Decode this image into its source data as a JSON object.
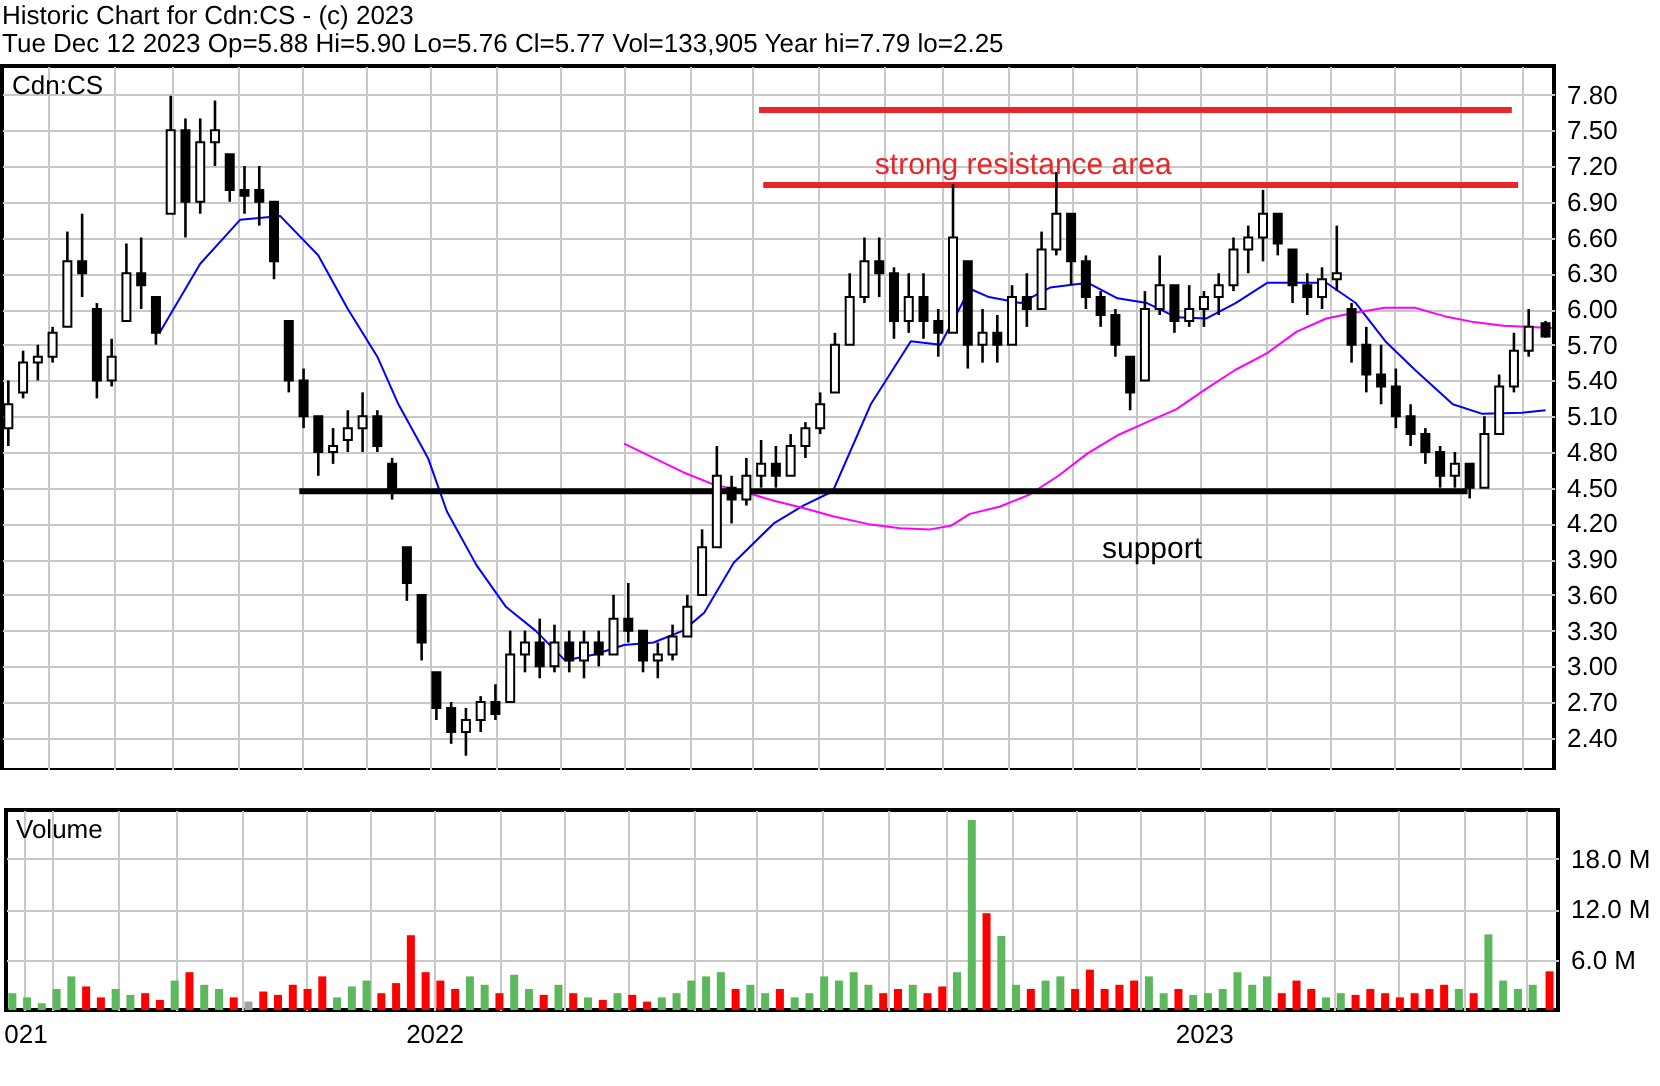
{
  "chart_data": [
    {
      "type": "candlestick",
      "title": "Historic Chart for Cdn:CS - (c) 2023",
      "subtitle": "Tue Dec 12 2023 Op=5.88 Hi=5.90 Lo=5.76 Cl=5.77 Vol=133,905 Year hi=7.79 lo=2.25",
      "x": [
        "2021-12-13",
        "2021-12-20",
        "2021-12-27",
        "2022-01-03",
        "2022-01-10",
        "2022-01-17",
        "2022-01-24",
        "2022-01-31",
        "2022-02-07",
        "2022-02-14",
        "2022-02-21",
        "2022-02-28",
        "2022-03-07",
        "2022-03-14",
        "2022-03-21",
        "2022-03-28",
        "2022-04-04",
        "2022-04-11",
        "2022-04-18",
        "2022-04-25",
        "2022-05-02",
        "2022-05-09",
        "2022-05-16",
        "2022-05-23",
        "2022-05-30",
        "2022-06-06",
        "2022-06-13",
        "2022-06-20",
        "2022-06-27",
        "2022-07-04",
        "2022-07-11",
        "2022-07-18",
        "2022-07-25",
        "2022-08-01",
        "2022-08-08",
        "2022-08-15",
        "2022-08-22",
        "2022-08-29",
        "2022-09-05",
        "2022-09-12",
        "2022-09-19",
        "2022-09-26",
        "2022-10-03",
        "2022-10-10",
        "2022-10-17",
        "2022-10-24",
        "2022-10-31",
        "2022-11-07",
        "2022-11-14",
        "2022-11-21",
        "2022-11-28",
        "2022-12-05",
        "2022-12-12",
        "2022-12-19",
        "2022-12-26",
        "2023-01-02",
        "2023-01-09",
        "2023-01-16",
        "2023-01-23",
        "2023-01-30",
        "2023-02-06",
        "2023-02-13",
        "2023-02-20",
        "2023-02-27",
        "2023-03-06",
        "2023-03-13",
        "2023-03-20",
        "2023-03-27",
        "2023-04-03",
        "2023-04-10",
        "2023-04-17",
        "2023-04-24",
        "2023-05-01",
        "2023-05-08",
        "2023-05-15",
        "2023-05-22",
        "2023-05-29",
        "2023-06-05",
        "2023-06-12",
        "2023-06-19",
        "2023-06-26",
        "2023-07-03",
        "2023-07-10",
        "2023-07-17",
        "2023-07-24",
        "2023-07-31",
        "2023-08-07",
        "2023-08-14",
        "2023-08-21",
        "2023-08-28",
        "2023-09-04",
        "2023-09-11",
        "2023-09-18",
        "2023-09-25",
        "2023-10-02",
        "2023-10-09",
        "2023-10-16",
        "2023-10-23",
        "2023-10-30",
        "2023-11-06",
        "2023-11-13",
        "2023-11-20",
        "2023-11-27",
        "2023-12-04",
        "2023-12-12"
      ],
      "ohlc": [
        [
          5.0,
          5.4,
          4.85,
          5.2
        ],
        [
          5.3,
          5.65,
          5.25,
          5.55
        ],
        [
          5.55,
          5.7,
          5.4,
          5.6
        ],
        [
          5.6,
          5.85,
          5.55,
          5.8
        ],
        [
          5.85,
          6.65,
          5.85,
          6.4
        ],
        [
          6.4,
          6.8,
          6.1,
          6.3
        ],
        [
          6.0,
          6.05,
          5.25,
          5.4
        ],
        [
          5.4,
          5.75,
          5.35,
          5.6
        ],
        [
          5.9,
          6.55,
          5.9,
          6.3
        ],
        [
          6.3,
          6.6,
          6.0,
          6.2
        ],
        [
          6.1,
          6.1,
          5.7,
          5.8
        ],
        [
          6.8,
          7.79,
          6.8,
          7.5
        ],
        [
          7.5,
          7.6,
          6.6,
          6.9
        ],
        [
          6.9,
          7.6,
          6.8,
          7.4
        ],
        [
          7.4,
          7.75,
          7.2,
          7.5
        ],
        [
          7.3,
          7.3,
          6.9,
          7.0
        ],
        [
          7.0,
          7.2,
          6.8,
          6.95
        ],
        [
          7.0,
          7.2,
          6.7,
          6.9
        ],
        [
          6.9,
          6.9,
          6.25,
          6.4
        ],
        [
          5.9,
          5.9,
          5.3,
          5.4
        ],
        [
          5.4,
          5.5,
          5.0,
          5.1
        ],
        [
          5.1,
          5.1,
          4.6,
          4.8
        ],
        [
          4.8,
          5.0,
          4.7,
          4.85
        ],
        [
          4.9,
          5.15,
          4.8,
          5.0
        ],
        [
          5.0,
          5.3,
          4.8,
          5.1
        ],
        [
          5.1,
          5.15,
          4.8,
          4.85
        ],
        [
          4.7,
          4.75,
          4.4,
          4.5
        ],
        [
          4.0,
          4.0,
          3.55,
          3.7
        ],
        [
          3.6,
          3.6,
          3.05,
          3.2
        ],
        [
          2.95,
          2.95,
          2.55,
          2.65
        ],
        [
          2.65,
          2.7,
          2.35,
          2.45
        ],
        [
          2.45,
          2.65,
          2.25,
          2.55
        ],
        [
          2.55,
          2.75,
          2.45,
          2.7
        ],
        [
          2.7,
          2.85,
          2.55,
          2.6
        ],
        [
          2.7,
          3.3,
          2.7,
          3.1
        ],
        [
          3.1,
          3.3,
          2.95,
          3.2
        ],
        [
          3.2,
          3.4,
          2.9,
          3.0
        ],
        [
          3.0,
          3.35,
          2.95,
          3.2
        ],
        [
          3.2,
          3.3,
          2.95,
          3.05
        ],
        [
          3.05,
          3.3,
          2.9,
          3.2
        ],
        [
          3.2,
          3.3,
          3.0,
          3.1
        ],
        [
          3.1,
          3.6,
          3.1,
          3.4
        ],
        [
          3.4,
          3.7,
          3.2,
          3.3
        ],
        [
          3.3,
          3.3,
          2.95,
          3.05
        ],
        [
          3.05,
          3.2,
          2.9,
          3.1
        ],
        [
          3.1,
          3.35,
          3.05,
          3.25
        ],
        [
          3.25,
          3.6,
          3.25,
          3.5
        ],
        [
          3.6,
          4.15,
          3.6,
          4.0
        ],
        [
          4.0,
          4.85,
          4.0,
          4.6
        ],
        [
          4.5,
          4.6,
          4.2,
          4.4
        ],
        [
          4.4,
          4.75,
          4.35,
          4.6
        ],
        [
          4.6,
          4.9,
          4.5,
          4.7
        ],
        [
          4.7,
          4.85,
          4.5,
          4.6
        ],
        [
          4.6,
          4.95,
          4.6,
          4.85
        ],
        [
          4.85,
          5.05,
          4.75,
          5.0
        ],
        [
          5.0,
          5.3,
          4.95,
          5.2
        ],
        [
          5.3,
          5.8,
          5.3,
          5.7
        ],
        [
          5.7,
          6.3,
          5.7,
          6.1
        ],
        [
          6.1,
          6.6,
          6.05,
          6.4
        ],
        [
          6.4,
          6.6,
          6.1,
          6.3
        ],
        [
          6.3,
          6.35,
          5.75,
          5.9
        ],
        [
          5.9,
          6.3,
          5.8,
          6.1
        ],
        [
          6.1,
          6.3,
          5.75,
          5.9
        ],
        [
          5.9,
          6.0,
          5.6,
          5.8
        ],
        [
          5.8,
          7.05,
          5.8,
          6.6
        ],
        [
          6.4,
          6.4,
          5.5,
          5.7
        ],
        [
          5.7,
          6.0,
          5.55,
          5.8
        ],
        [
          5.8,
          5.95,
          5.55,
          5.7
        ],
        [
          5.7,
          6.2,
          5.7,
          6.1
        ],
        [
          6.1,
          6.3,
          5.85,
          6.0
        ],
        [
          6.0,
          6.65,
          6.0,
          6.5
        ],
        [
          6.5,
          7.15,
          6.45,
          6.8
        ],
        [
          6.8,
          6.8,
          6.2,
          6.4
        ],
        [
          6.4,
          6.45,
          6.0,
          6.1
        ],
        [
          6.1,
          6.15,
          5.85,
          5.95
        ],
        [
          5.95,
          6.0,
          5.6,
          5.7
        ],
        [
          5.6,
          5.6,
          5.15,
          5.3
        ],
        [
          5.4,
          6.15,
          5.4,
          6.0
        ],
        [
          6.0,
          6.45,
          5.95,
          6.2
        ],
        [
          6.2,
          6.2,
          5.8,
          5.9
        ],
        [
          5.9,
          6.2,
          5.85,
          6.0
        ],
        [
          6.0,
          6.15,
          5.85,
          6.1
        ],
        [
          6.1,
          6.3,
          5.95,
          6.2
        ],
        [
          6.2,
          6.6,
          6.15,
          6.5
        ],
        [
          6.5,
          6.7,
          6.3,
          6.6
        ],
        [
          6.6,
          7.0,
          6.4,
          6.8
        ],
        [
          6.8,
          6.8,
          6.45,
          6.55
        ],
        [
          6.5,
          6.5,
          6.05,
          6.2
        ],
        [
          6.2,
          6.3,
          5.95,
          6.1
        ],
        [
          6.1,
          6.35,
          6.0,
          6.25
        ],
        [
          6.25,
          6.7,
          6.15,
          6.3
        ],
        [
          6.0,
          6.05,
          5.55,
          5.7
        ],
        [
          5.7,
          5.85,
          5.3,
          5.45
        ],
        [
          5.45,
          5.7,
          5.2,
          5.35
        ],
        [
          5.35,
          5.5,
          5.0,
          5.1
        ],
        [
          5.1,
          5.2,
          4.85,
          4.95
        ],
        [
          4.95,
          5.0,
          4.7,
          4.8
        ],
        [
          4.8,
          4.85,
          4.5,
          4.6
        ],
        [
          4.6,
          4.8,
          4.5,
          4.7
        ],
        [
          4.7,
          4.7,
          4.41,
          4.5
        ],
        [
          4.5,
          5.1,
          4.5,
          4.95
        ],
        [
          4.95,
          5.45,
          4.95,
          5.35
        ],
        [
          5.35,
          5.8,
          5.3,
          5.65
        ],
        [
          5.65,
          6.0,
          5.6,
          5.85
        ],
        [
          5.88,
          5.9,
          5.76,
          5.77
        ]
      ],
      "series": [
        {
          "type": "line",
          "color": "#0000ff",
          "x": [
            "2022-02-23",
            "2022-03-14",
            "2022-04-02",
            "2022-04-21",
            "2022-05-09",
            "2022-05-23",
            "2022-06-06",
            "2022-06-16",
            "2022-06-30",
            "2022-07-09",
            "2022-07-23",
            "2022-08-06",
            "2022-08-20",
            "2022-09-03",
            "2022-09-17",
            "2022-10-01",
            "2022-10-15",
            "2022-10-29",
            "2022-11-08",
            "2022-11-22",
            "2022-12-11",
            "2022-12-25",
            "2023-01-08",
            "2023-01-26",
            "2023-02-14",
            "2023-02-28",
            "2023-03-14",
            "2023-03-23",
            "2023-04-07",
            "2023-04-21",
            "2023-05-09",
            "2023-05-23",
            "2023-06-06",
            "2023-06-20",
            "2023-07-04",
            "2023-07-18",
            "2023-08-02",
            "2023-08-16",
            "2023-08-30",
            "2023-09-13",
            "2023-09-27",
            "2023-10-11",
            "2023-10-29",
            "2023-11-12",
            "2023-12-01",
            "2023-12-12"
          ],
          "values": [
            5.81,
            6.38,
            6.75,
            6.78,
            6.45,
            6.0,
            5.6,
            5.2,
            4.75,
            4.3,
            3.85,
            3.5,
            3.3,
            3.05,
            3.1,
            3.18,
            3.2,
            3.3,
            3.45,
            3.87,
            4.2,
            4.35,
            4.47,
            5.2,
            5.73,
            5.7,
            6.17,
            6.1,
            6.05,
            6.18,
            6.22,
            6.09,
            6.05,
            5.93,
            5.92,
            6.05,
            6.22,
            6.22,
            6.22,
            6.05,
            5.73,
            5.49,
            5.2,
            5.12,
            5.13,
            5.15
          ]
        },
        {
          "type": "line",
          "color": "#ff00ff",
          "x": [
            "2022-10-01",
            "2022-10-15",
            "2022-10-29",
            "2022-11-12",
            "2022-11-26",
            "2022-12-11",
            "2022-12-25",
            "2023-01-08",
            "2023-01-26",
            "2023-02-09",
            "2023-02-23",
            "2023-03-05",
            "2023-03-14",
            "2023-03-28",
            "2023-04-11",
            "2023-04-25",
            "2023-05-09",
            "2023-05-23",
            "2023-06-06",
            "2023-06-20",
            "2023-07-04",
            "2023-07-18",
            "2023-08-02",
            "2023-08-16",
            "2023-08-30",
            "2023-09-13",
            "2023-09-27",
            "2023-10-11",
            "2023-10-25",
            "2023-11-08",
            "2023-11-22",
            "2023-12-15"
          ],
          "values": [
            4.87,
            4.75,
            4.63,
            4.53,
            4.47,
            4.39,
            4.33,
            4.26,
            4.19,
            4.16,
            4.15,
            4.18,
            4.28,
            4.34,
            4.44,
            4.6,
            4.79,
            4.94,
            5.05,
            5.16,
            5.33,
            5.49,
            5.63,
            5.81,
            5.92,
            5.97,
            6.01,
            6.01,
            5.94,
            5.89,
            5.86,
            5.84
          ]
        },
        {
          "type": "line",
          "color": "#e8262a",
          "x": [
            "2022-12-04",
            "2023-11-26"
          ],
          "values": [
            7.67,
            7.67
          ]
        },
        {
          "type": "line",
          "color": "#e8262a",
          "x": [
            "2022-12-06",
            "2023-11-29"
          ],
          "values": [
            7.04,
            7.04
          ]
        },
        {
          "type": "line",
          "color": "#000000",
          "x": [
            "2022-04-30",
            "2023-11-05"
          ],
          "values": [
            4.47,
            4.47
          ]
        }
      ],
      "xlim": [
        "2021-12-10",
        "2023-12-16"
      ],
      "xticks": [
        {
          "value": "2022-01-01",
          "label": null
        },
        {
          "value": "2022-02-01",
          "label": null
        },
        {
          "value": "2022-03-01",
          "label": null
        },
        {
          "value": "2022-04-01",
          "label": null
        },
        {
          "value": "2022-05-01",
          "label": null
        },
        {
          "value": "2022-06-01",
          "label": null
        },
        {
          "value": "2022-07-01",
          "label": null
        },
        {
          "value": "2022-08-01",
          "label": null
        },
        {
          "value": "2022-09-01",
          "label": null
        },
        {
          "value": "2022-10-01",
          "label": null
        },
        {
          "value": "2022-11-01",
          "label": null
        },
        {
          "value": "2022-12-01",
          "label": null
        },
        {
          "value": "2023-01-01",
          "label": null
        },
        {
          "value": "2023-02-01",
          "label": null
        },
        {
          "value": "2023-03-01",
          "label": null
        },
        {
          "value": "2023-04-01",
          "label": null
        },
        {
          "value": "2023-05-01",
          "label": null
        },
        {
          "value": "2023-06-01",
          "label": null
        },
        {
          "value": "2023-07-01",
          "label": null
        },
        {
          "value": "2023-08-01",
          "label": null
        },
        {
          "value": "2023-09-01",
          "label": null
        },
        {
          "value": "2023-10-01",
          "label": null
        },
        {
          "value": "2023-11-01",
          "label": null
        },
        {
          "value": "2023-12-01",
          "label": null
        }
      ],
      "ylim": [
        2.13,
        8.04
      ],
      "yticks": [
        {
          "value": 2.4,
          "label": "2.40"
        },
        {
          "value": 2.7,
          "label": "2.70"
        },
        {
          "value": 3.0,
          "label": "3.00"
        },
        {
          "value": 3.3,
          "label": "3.30"
        },
        {
          "value": 3.6,
          "label": "3.60"
        },
        {
          "value": 3.9,
          "label": "3.90"
        },
        {
          "value": 4.2,
          "label": "4.20"
        },
        {
          "value": 4.5,
          "label": "4.50"
        },
        {
          "value": 4.8,
          "label": "4.80"
        },
        {
          "value": 5.1,
          "label": "5.10"
        },
        {
          "value": 5.4,
          "label": "5.40"
        },
        {
          "value": 5.7,
          "label": "5.70"
        },
        {
          "value": 6.0,
          "label": "6.00"
        },
        {
          "value": 6.3,
          "label": "6.30"
        },
        {
          "value": 6.6,
          "label": "6.60"
        },
        {
          "value": 6.9,
          "label": "6.90"
        },
        {
          "value": 7.2,
          "label": "7.20"
        },
        {
          "value": 7.5,
          "label": "7.50"
        },
        {
          "value": 7.8,
          "label": "7.80"
        }
      ],
      "grid": true,
      "tick_labels": "y",
      "annotations": [
        "Cdn:CS",
        "strong resistance area",
        "support"
      ]
    },
    {
      "type": "bar",
      "annotations": [
        "Volume"
      ],
      "x": [
        "2021-12-13",
        "2021-12-20",
        "2021-12-27",
        "2022-01-03",
        "2022-01-10",
        "2022-01-17",
        "2022-01-24",
        "2022-01-31",
        "2022-02-07",
        "2022-02-14",
        "2022-02-21",
        "2022-02-28",
        "2022-03-07",
        "2022-03-14",
        "2022-03-21",
        "2022-03-28",
        "2022-04-04",
        "2022-04-11",
        "2022-04-18",
        "2022-04-25",
        "2022-05-02",
        "2022-05-09",
        "2022-05-16",
        "2022-05-23",
        "2022-05-30",
        "2022-06-06",
        "2022-06-13",
        "2022-06-20",
        "2022-06-27",
        "2022-07-04",
        "2022-07-11",
        "2022-07-18",
        "2022-07-25",
        "2022-08-01",
        "2022-08-08",
        "2022-08-15",
        "2022-08-22",
        "2022-08-29",
        "2022-09-05",
        "2022-09-12",
        "2022-09-19",
        "2022-09-26",
        "2022-10-03",
        "2022-10-10",
        "2022-10-17",
        "2022-10-24",
        "2022-10-31",
        "2022-11-07",
        "2022-11-14",
        "2022-11-21",
        "2022-11-28",
        "2022-12-05",
        "2022-12-12",
        "2022-12-19",
        "2022-12-26",
        "2023-01-02",
        "2023-01-09",
        "2023-01-16",
        "2023-01-23",
        "2023-01-30",
        "2023-02-06",
        "2023-02-13",
        "2023-02-20",
        "2023-02-27",
        "2023-03-06",
        "2023-03-13",
        "2023-03-20",
        "2023-03-27",
        "2023-04-03",
        "2023-04-10",
        "2023-04-17",
        "2023-04-24",
        "2023-05-01",
        "2023-05-08",
        "2023-05-15",
        "2023-05-22",
        "2023-05-29",
        "2023-06-05",
        "2023-06-12",
        "2023-06-19",
        "2023-06-26",
        "2023-07-03",
        "2023-07-10",
        "2023-07-17",
        "2023-07-24",
        "2023-07-31",
        "2023-08-07",
        "2023-08-14",
        "2023-08-21",
        "2023-08-28",
        "2023-09-04",
        "2023-09-11",
        "2023-09-18",
        "2023-09-25",
        "2023-10-02",
        "2023-10-09",
        "2023-10-16",
        "2023-10-23",
        "2023-10-30",
        "2023-11-06",
        "2023-11-13",
        "2023-11-20",
        "2023-11-27",
        "2023-12-04",
        "2023-12-12"
      ],
      "values": [
        2.0,
        1.5,
        0.8,
        2.5,
        4.0,
        2.8,
        1.5,
        2.5,
        1.8,
        2.0,
        1.2,
        3.5,
        4.5,
        3.0,
        2.5,
        1.5,
        1.0,
        2.2,
        1.8,
        3.0,
        2.5,
        4.0,
        1.5,
        2.8,
        3.5,
        2.0,
        3.2,
        8.9,
        4.5,
        3.5,
        2.5,
        4.0,
        3.0,
        2.0,
        4.2,
        2.5,
        1.8,
        3.0,
        2.0,
        1.5,
        1.2,
        2.0,
        1.8,
        1.0,
        1.5,
        2.0,
        3.5,
        4.0,
        4.5,
        2.5,
        3.0,
        2.0,
        2.5,
        1.5,
        2.0,
        4.0,
        3.5,
        4.5,
        3.0,
        2.0,
        2.5,
        3.0,
        2.0,
        2.8,
        4.5,
        22.6,
        11.5,
        8.8,
        3.0,
        2.5,
        3.5,
        4.0,
        2.5,
        4.8,
        2.5,
        3.0,
        3.5,
        4.0,
        2.0,
        2.5,
        1.8,
        2.0,
        2.5,
        4.5,
        3.0,
        4.0,
        2.0,
        3.5,
        2.5,
        1.5,
        2.0,
        1.8,
        2.5,
        2.0,
        1.5,
        2.0,
        2.5,
        3.0,
        2.5,
        2.0,
        9.0,
        3.5,
        2.5,
        3.0,
        4.6
      ],
      "colors": [
        "#5cb85c",
        "#5cb85c",
        "#5cb85c",
        "#5cb85c",
        "#5cb85c",
        "#ff0000",
        "#ff0000",
        "#5cb85c",
        "#5cb85c",
        "#ff0000",
        "#ff0000",
        "#5cb85c",
        "#ff0000",
        "#5cb85c",
        "#5cb85c",
        "#ff0000",
        "#a0a0a0",
        "#ff0000",
        "#ff0000",
        "#ff0000",
        "#ff0000",
        "#ff0000",
        "#5cb85c",
        "#5cb85c",
        "#5cb85c",
        "#ff0000",
        "#ff0000",
        "#ff0000",
        "#ff0000",
        "#ff0000",
        "#ff0000",
        "#5cb85c",
        "#5cb85c",
        "#ff0000",
        "#5cb85c",
        "#5cb85c",
        "#ff0000",
        "#5cb85c",
        "#ff0000",
        "#5cb85c",
        "#ff0000",
        "#5cb85c",
        "#ff0000",
        "#ff0000",
        "#5cb85c",
        "#5cb85c",
        "#5cb85c",
        "#5cb85c",
        "#5cb85c",
        "#ff0000",
        "#5cb85c",
        "#5cb85c",
        "#ff0000",
        "#5cb85c",
        "#5cb85c",
        "#5cb85c",
        "#5cb85c",
        "#5cb85c",
        "#5cb85c",
        "#ff0000",
        "#ff0000",
        "#5cb85c",
        "#ff0000",
        "#ff0000",
        "#5cb85c",
        "#5cb85c",
        "#ff0000",
        "#5cb85c",
        "#5cb85c",
        "#ff0000",
        "#5cb85c",
        "#5cb85c",
        "#ff0000",
        "#ff0000",
        "#ff0000",
        "#ff0000",
        "#ff0000",
        "#5cb85c",
        "#5cb85c",
        "#ff0000",
        "#5cb85c",
        "#5cb85c",
        "#5cb85c",
        "#5cb85c",
        "#5cb85c",
        "#5cb85c",
        "#ff0000",
        "#ff0000",
        "#ff0000",
        "#5cb85c",
        "#5cb85c",
        "#ff0000",
        "#ff0000",
        "#ff0000",
        "#ff0000",
        "#ff0000",
        "#ff0000",
        "#ff0000",
        "#5cb85c",
        "#ff0000",
        "#5cb85c",
        "#5cb85c",
        "#5cb85c",
        "#5cb85c",
        "#ff0000"
      ],
      "xlim": [
        "2021-12-10",
        "2023-12-16"
      ],
      "xticks": [
        {
          "value": "2021-12-19",
          "label": "021"
        },
        {
          "value": "2022-01-01",
          "label": null
        },
        {
          "value": "2022-02-01",
          "label": null
        },
        {
          "value": "2022-03-01",
          "label": null
        },
        {
          "value": "2022-04-01",
          "label": null
        },
        {
          "value": "2022-05-01",
          "label": null
        },
        {
          "value": "2022-06-01",
          "label": null
        },
        {
          "value": "2022-07-01",
          "label": "2022"
        },
        {
          "value": "2022-08-01",
          "label": null
        },
        {
          "value": "2022-09-01",
          "label": null
        },
        {
          "value": "2022-10-01",
          "label": null
        },
        {
          "value": "2022-11-01",
          "label": null
        },
        {
          "value": "2022-12-01",
          "label": null
        },
        {
          "value": "2023-01-01",
          "label": null
        },
        {
          "value": "2023-02-01",
          "label": null
        },
        {
          "value": "2023-03-01",
          "label": null
        },
        {
          "value": "2023-04-01",
          "label": null
        },
        {
          "value": "2023-05-01",
          "label": null
        },
        {
          "value": "2023-06-01",
          "label": null
        },
        {
          "value": "2023-07-01",
          "label": "2023"
        },
        {
          "value": "2023-08-01",
          "label": null
        },
        {
          "value": "2023-09-01",
          "label": null
        },
        {
          "value": "2023-10-01",
          "label": null
        },
        {
          "value": "2023-11-01",
          "label": null
        },
        {
          "value": "2023-12-01",
          "label": null
        }
      ],
      "ylim": [
        0,
        23.8
      ],
      "yticks": [
        {
          "value": 6,
          "label": "6.0 M"
        },
        {
          "value": 12,
          "label": "12.0 M"
        },
        {
          "value": 18,
          "label": "18.0 M"
        }
      ],
      "grid": true
    }
  ]
}
